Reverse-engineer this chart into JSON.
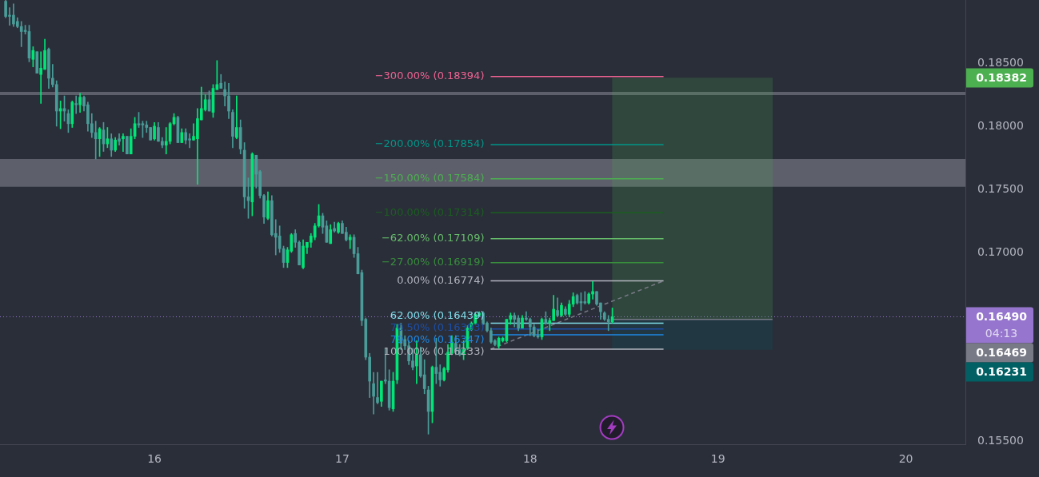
{
  "chart_data": {
    "type": "candlestick",
    "xlim": [
      15.178,
      20.317
    ],
    "ylim": [
      0.1548,
      0.19
    ],
    "xticks": [
      16,
      17,
      18,
      19,
      20
    ],
    "yticks": [
      {
        "value": 0.155,
        "label": "0.15500"
      },
      {
        "value": 0.17,
        "label": "0.17000"
      },
      {
        "value": 0.175,
        "label": "0.17500"
      },
      {
        "value": 0.18,
        "label": "0.18000"
      },
      {
        "value": 0.185,
        "label": "0.18500"
      }
    ],
    "grid": false,
    "legend": false,
    "bands": [
      {
        "axis": "y",
        "from": 0.1752,
        "to": 0.1774,
        "color": "#5d606b"
      }
    ],
    "ref_lines": [
      {
        "axis": "y",
        "value": 0.1826,
        "color": "#5d606b"
      },
      {
        "axis": "y",
        "value": 0.1649,
        "label": "0.16490",
        "color": "#9575cd",
        "line_style": "dotted"
      }
    ],
    "annotations": [
      "0.18382",
      "0.16469",
      "0.16231",
      "04:13"
    ],
    "series": [
      {
        "type": "bar",
        "x": [
          18.8638
        ],
        "base": [
          0.16469
        ],
        "values": [
          0.01913
        ],
        "color": "#4caf50"
      },
      {
        "type": "bar",
        "x": [
          18.8638
        ],
        "base": [
          0.16231
        ],
        "values": [
          0.00238
        ],
        "color": "#006064"
      },
      {
        "type": "line",
        "x": [
          18.4375,
          19.29
        ],
        "values": [
          0.16469,
          0.16469
        ],
        "color": "#787b86"
      },
      {
        "type": "line",
        "name": "−300.00% (0.18394)",
        "x": [
          17.79,
          18.71
        ],
        "values": [
          0.18394,
          0.18394
        ],
        "color": "#f06292"
      },
      {
        "type": "line",
        "name": "−200.00% (0.17854)",
        "x": [
          17.79,
          18.71
        ],
        "values": [
          0.17854,
          0.17854
        ],
        "color": "#009688"
      },
      {
        "type": "line",
        "name": "−150.00% (0.17584)",
        "x": [
          17.79,
          18.71
        ],
        "values": [
          0.17584,
          0.17584
        ],
        "color": "#4caf50"
      },
      {
        "type": "line",
        "name": "−100.00% (0.17314)",
        "x": [
          17.79,
          18.71
        ],
        "values": [
          0.17314,
          0.17314
        ],
        "color": "#1b5e20"
      },
      {
        "type": "line",
        "name": "−62.00% (0.17109)",
        "x": [
          17.79,
          18.71
        ],
        "values": [
          0.17109,
          0.17109
        ],
        "color": "#66bb6a"
      },
      {
        "type": "line",
        "name": "−27.00% (0.16919)",
        "x": [
          17.79,
          18.71
        ],
        "values": [
          0.16919,
          0.16919
        ],
        "color": "#388e3c"
      },
      {
        "type": "line",
        "name": "0.00% (0.16774)",
        "x": [
          17.79,
          18.71
        ],
        "values": [
          0.16774,
          0.16774
        ],
        "color": "#b2b5be"
      },
      {
        "type": "line",
        "name": "62.00% (0.16439)",
        "x": [
          17.79,
          18.71
        ],
        "values": [
          0.16439,
          0.16439
        ],
        "color": "#80deea"
      },
      {
        "type": "line",
        "name": "70.50% (0.16393)",
        "x": [
          17.79,
          18.71
        ],
        "values": [
          0.16393,
          0.16393
        ],
        "color": "#1c4fa8"
      },
      {
        "type": "line",
        "name": "79.00% (0.16347)",
        "x": [
          17.79,
          18.71
        ],
        "values": [
          0.16347,
          0.16347
        ],
        "color": "#1e88e5"
      },
      {
        "type": "line",
        "name": "100.00% (0.16233)",
        "x": [
          17.79,
          18.71
        ],
        "values": [
          0.16233,
          0.16233
        ],
        "color": "#b2b5be"
      },
      {
        "type": "line",
        "x": [
          17.79,
          18.71
        ],
        "values": [
          0.16233,
          0.16774
        ],
        "color": "#787b86",
        "line_style": "dashed"
      },
      {
        "x": [
          15.2083,
          15.2292,
          15.25,
          15.2708,
          15.2917,
          15.3125,
          15.3333,
          15.3542,
          15.375,
          15.3958,
          15.4167,
          15.4375,
          15.4583,
          15.4792,
          15.5,
          15.5208,
          15.5417,
          15.5625,
          15.5833,
          15.6042,
          15.625,
          15.6458,
          15.6667,
          15.6875,
          15.7083,
          15.7292,
          15.75,
          15.7708,
          15.7917,
          15.8125,
          15.8333,
          15.8542,
          15.875,
          15.8958,
          15.9167,
          15.9375,
          15.9583,
          15.9792,
          16,
          16.0208,
          16.0417,
          16.0625,
          16.0833,
          16.1042,
          16.125,
          16.1458,
          16.1667,
          16.1875,
          16.2083,
          16.2292,
          16.25,
          16.2708,
          16.2917,
          16.3125,
          16.3333,
          16.3542,
          16.375,
          16.3958,
          16.4167,
          16.4375,
          16.4583,
          16.4792,
          16.5,
          16.5208,
          16.5417,
          16.5625,
          16.5833,
          16.6042,
          16.625,
          16.6458,
          16.6667,
          16.6875,
          16.7083,
          16.7292,
          16.75,
          16.7708,
          16.7917,
          16.8125,
          16.8333,
          16.8542,
          16.875,
          16.8958,
          16.9167,
          16.9375,
          16.9583,
          16.9792,
          17,
          17.0208,
          17.0417,
          17.0625,
          17.0833,
          17.1042,
          17.125,
          17.1458,
          17.1667,
          17.1875,
          17.2083,
          17.2292,
          17.25,
          17.2708,
          17.2917,
          17.3125,
          17.3333,
          17.3542,
          17.375,
          17.3958,
          17.4167,
          17.4375,
          17.4583,
          17.4792,
          17.5,
          17.5208,
          17.5417,
          17.5625,
          17.5833,
          17.6042,
          17.625,
          17.6458,
          17.6667,
          17.6875,
          17.7083,
          17.7292,
          17.75,
          17.7708,
          17.7917,
          17.8125,
          17.8333,
          17.8542,
          17.875,
          17.8958,
          17.9167,
          17.9375,
          17.9583,
          17.9792,
          18,
          18.0208,
          18.0417,
          18.0625,
          18.0833,
          18.1042,
          18.125,
          18.1458,
          18.1667,
          18.1875,
          18.2083,
          18.2292,
          18.25,
          18.2708,
          18.2917,
          18.3125,
          18.3333,
          18.3542,
          18.375,
          18.3958,
          18.4167,
          18.4375
        ],
        "ohlc": [
          [
            0.1899,
            0.19,
            0.1886,
            0.1887
          ],
          [
            0.1888,
            0.1894,
            0.188,
            0.1887
          ],
          [
            0.1888,
            0.1897,
            0.1879,
            0.1881
          ],
          [
            0.1883,
            0.1886,
            0.1878,
            0.1879
          ],
          [
            0.1879,
            0.1883,
            0.1863,
            0.1875
          ],
          [
            0.1876,
            0.188,
            0.1873,
            0.1875
          ],
          [
            0.1875,
            0.188,
            0.1851,
            0.1854
          ],
          [
            0.1853,
            0.1863,
            0.1847,
            0.186
          ],
          [
            0.1859,
            0.1859,
            0.1842,
            0.1842
          ],
          [
            0.1841,
            0.1859,
            0.1818,
            0.1846
          ],
          [
            0.1845,
            0.1869,
            0.1845,
            0.186
          ],
          [
            0.1861,
            0.1862,
            0.183,
            0.1838
          ],
          [
            0.1838,
            0.1849,
            0.1831,
            0.1833
          ],
          [
            0.1833,
            0.1836,
            0.18,
            0.1812
          ],
          [
            0.1812,
            0.182,
            0.1798,
            0.1814
          ],
          [
            0.1814,
            0.1824,
            0.1804,
            0.1812
          ],
          [
            0.181,
            0.1813,
            0.1795,
            0.1802
          ],
          [
            0.1802,
            0.182,
            0.1799,
            0.1819
          ],
          [
            0.1818,
            0.1824,
            0.181,
            0.1817
          ],
          [
            0.1817,
            0.1826,
            0.1811,
            0.1823
          ],
          [
            0.1823,
            0.1824,
            0.1812,
            0.1816
          ],
          [
            0.1817,
            0.1819,
            0.1796,
            0.1802
          ],
          [
            0.1802,
            0.181,
            0.1791,
            0.1795
          ],
          [
            0.1795,
            0.1804,
            0.1774,
            0.179
          ],
          [
            0.179,
            0.1799,
            0.1776,
            0.1798
          ],
          [
            0.1797,
            0.1803,
            0.178,
            0.1786
          ],
          [
            0.1786,
            0.1799,
            0.1783,
            0.179
          ],
          [
            0.179,
            0.1794,
            0.1776,
            0.1781
          ],
          [
            0.1781,
            0.1791,
            0.178,
            0.1789
          ],
          [
            0.179,
            0.1794,
            0.1785,
            0.1788
          ],
          [
            0.179,
            0.1794,
            0.178,
            0.1792
          ],
          [
            0.1792,
            0.1792,
            0.1778,
            0.1778
          ],
          [
            0.1778,
            0.1798,
            0.1778,
            0.1792
          ],
          [
            0.1792,
            0.1807,
            0.179,
            0.1802
          ],
          [
            0.1802,
            0.1811,
            0.1799,
            0.1801
          ],
          [
            0.1802,
            0.1804,
            0.1791,
            0.1801
          ],
          [
            0.1801,
            0.1804,
            0.1795,
            0.1799
          ],
          [
            0.1799,
            0.1799,
            0.1789,
            0.1789
          ],
          [
            0.179,
            0.1803,
            0.1789,
            0.18
          ],
          [
            0.1799,
            0.1803,
            0.1788,
            0.1788
          ],
          [
            0.1788,
            0.1791,
            0.1783,
            0.1785
          ],
          [
            0.1785,
            0.1799,
            0.1778,
            0.1788
          ],
          [
            0.1788,
            0.1803,
            0.1786,
            0.1802
          ],
          [
            0.1802,
            0.181,
            0.1801,
            0.1807
          ],
          [
            0.1807,
            0.1808,
            0.1787,
            0.1787
          ],
          [
            0.1787,
            0.1798,
            0.1787,
            0.1795
          ],
          [
            0.1795,
            0.1798,
            0.1786,
            0.1789
          ],
          [
            0.179,
            0.1794,
            0.1783,
            0.1789
          ],
          [
            0.1789,
            0.1802,
            0.1789,
            0.1792
          ],
          [
            0.179,
            0.1814,
            0.1754,
            0.1806
          ],
          [
            0.1805,
            0.1831,
            0.1805,
            0.1814
          ],
          [
            0.1813,
            0.1825,
            0.1812,
            0.1821
          ],
          [
            0.1821,
            0.1828,
            0.1812,
            0.1812
          ],
          [
            0.1811,
            0.1833,
            0.1807,
            0.183
          ],
          [
            0.1829,
            0.1852,
            0.1829,
            0.1833
          ],
          [
            0.1834,
            0.1841,
            0.183,
            0.183
          ],
          [
            0.1829,
            0.1835,
            0.1816,
            0.1824
          ],
          [
            0.1824,
            0.1834,
            0.1806,
            0.1812
          ],
          [
            0.1811,
            0.1813,
            0.1783,
            0.1792
          ],
          [
            0.1791,
            0.1824,
            0.179,
            0.1799
          ],
          [
            0.1799,
            0.1805,
            0.1778,
            0.1782
          ],
          [
            0.1781,
            0.1787,
            0.1735,
            0.1744
          ],
          [
            0.1744,
            0.1759,
            0.1727,
            0.1741
          ],
          [
            0.174,
            0.1779,
            0.1729,
            0.1778
          ],
          [
            0.1777,
            0.1777,
            0.1751,
            0.1762
          ],
          [
            0.1764,
            0.1765,
            0.1743,
            0.1745
          ],
          [
            0.1745,
            0.1746,
            0.1723,
            0.1728
          ],
          [
            0.1727,
            0.1748,
            0.1726,
            0.1741
          ],
          [
            0.1741,
            0.1745,
            0.1713,
            0.1714
          ],
          [
            0.1715,
            0.1726,
            0.1698,
            0.1712
          ],
          [
            0.1713,
            0.1721,
            0.17,
            0.1703
          ],
          [
            0.1703,
            0.1705,
            0.1688,
            0.1692
          ],
          [
            0.1692,
            0.1704,
            0.1688,
            0.1702
          ],
          [
            0.1701,
            0.1715,
            0.17,
            0.1714
          ],
          [
            0.1715,
            0.1718,
            0.1704,
            0.1708
          ],
          [
            0.1708,
            0.1709,
            0.169,
            0.169
          ],
          [
            0.1688,
            0.171,
            0.1687,
            0.1705
          ],
          [
            0.1704,
            0.1708,
            0.1699,
            0.1708
          ],
          [
            0.1708,
            0.1715,
            0.1704,
            0.1713
          ],
          [
            0.1712,
            0.1723,
            0.171,
            0.1721
          ],
          [
            0.1721,
            0.1738,
            0.172,
            0.1729
          ],
          [
            0.1729,
            0.1731,
            0.1715,
            0.172
          ],
          [
            0.1721,
            0.1725,
            0.1708,
            0.1708
          ],
          [
            0.1707,
            0.1722,
            0.1707,
            0.1718
          ],
          [
            0.1719,
            0.1724,
            0.1716,
            0.1717
          ],
          [
            0.1716,
            0.1724,
            0.1715,
            0.1723
          ],
          [
            0.1723,
            0.1725,
            0.1715,
            0.1715
          ],
          [
            0.1716,
            0.172,
            0.1709,
            0.171
          ],
          [
            0.171,
            0.1714,
            0.1703,
            0.1712
          ],
          [
            0.1712,
            0.1714,
            0.1696,
            0.1699
          ],
          [
            0.1699,
            0.1704,
            0.1683,
            0.1683
          ],
          [
            0.1684,
            0.1686,
            0.1642,
            0.1646
          ],
          [
            0.1647,
            0.1648,
            0.1615,
            0.1617
          ],
          [
            0.1617,
            0.162,
            0.1585,
            0.1598
          ],
          [
            0.1596,
            0.1605,
            0.1572,
            0.1586
          ],
          [
            0.1585,
            0.1605,
            0.158,
            0.1581
          ],
          [
            0.1582,
            0.1598,
            0.1578,
            0.1598
          ],
          [
            0.1599,
            0.1624,
            0.1596,
            0.1598
          ],
          [
            0.1598,
            0.1607,
            0.1575,
            0.1577
          ],
          [
            0.1576,
            0.1605,
            0.1574,
            0.1598
          ],
          [
            0.1599,
            0.1643,
            0.1596,
            0.164
          ],
          [
            0.164,
            0.1644,
            0.1623,
            0.1628
          ],
          [
            0.1631,
            0.1634,
            0.1623,
            0.1626
          ],
          [
            0.1626,
            0.163,
            0.1611,
            0.1614
          ],
          [
            0.1614,
            0.1624,
            0.1607,
            0.1609
          ],
          [
            0.161,
            0.163,
            0.1596,
            0.1619
          ],
          [
            0.1619,
            0.1625,
            0.1601,
            0.1602
          ],
          [
            0.1603,
            0.1615,
            0.1588,
            0.1592
          ],
          [
            0.1591,
            0.1594,
            0.1556,
            0.1574
          ],
          [
            0.1574,
            0.161,
            0.1565,
            0.1609
          ],
          [
            0.1609,
            0.1632,
            0.1596,
            0.1604
          ],
          [
            0.1605,
            0.1611,
            0.1594,
            0.1599
          ],
          [
            0.1599,
            0.1609,
            0.1598,
            0.1608
          ],
          [
            0.1607,
            0.1627,
            0.1605,
            0.1621
          ],
          [
            0.162,
            0.1634,
            0.1619,
            0.1629
          ],
          [
            0.1628,
            0.1634,
            0.1619,
            0.1622
          ],
          [
            0.1623,
            0.1627,
            0.1618,
            0.1619
          ],
          [
            0.1619,
            0.163,
            0.1615,
            0.1623
          ],
          [
            0.1624,
            0.1642,
            0.1623,
            0.164
          ],
          [
            0.1639,
            0.1645,
            0.1638,
            0.1644
          ],
          [
            0.1644,
            0.1652,
            0.1643,
            0.1651
          ],
          [
            0.165,
            0.1653,
            0.1649,
            0.1652
          ],
          [
            0.1652,
            0.1653,
            0.1643,
            0.1643
          ],
          [
            0.1644,
            0.1645,
            0.1637,
            0.1638
          ],
          [
            0.1638,
            0.164,
            0.1628,
            0.1629
          ],
          [
            0.163,
            0.1631,
            0.1626,
            0.1627
          ],
          [
            0.1626,
            0.1633,
            0.1624,
            0.1632
          ],
          [
            0.163,
            0.1633,
            0.1629,
            0.1632
          ],
          [
            0.163,
            0.1647,
            0.1629,
            0.1647
          ],
          [
            0.1647,
            0.1652,
            0.1643,
            0.165
          ],
          [
            0.165,
            0.1652,
            0.1641,
            0.1647
          ],
          [
            0.1648,
            0.165,
            0.1638,
            0.164
          ],
          [
            0.164,
            0.165,
            0.164,
            0.1648
          ],
          [
            0.1648,
            0.1653,
            0.1646,
            0.1647
          ],
          [
            0.1647,
            0.1648,
            0.1634,
            0.1641
          ],
          [
            0.1641,
            0.1643,
            0.1633,
            0.1634
          ],
          [
            0.1634,
            0.1639,
            0.1632,
            0.1633
          ],
          [
            0.1633,
            0.1648,
            0.1631,
            0.1647
          ],
          [
            0.1647,
            0.1653,
            0.1643,
            0.1644
          ],
          [
            0.1644,
            0.1648,
            0.1638,
            0.1646
          ],
          [
            0.1646,
            0.1666,
            0.1646,
            0.1655
          ],
          [
            0.1654,
            0.1664,
            0.1649,
            0.165
          ],
          [
            0.165,
            0.166,
            0.1649,
            0.1658
          ],
          [
            0.1655,
            0.1657,
            0.165,
            0.1651
          ],
          [
            0.1651,
            0.1662,
            0.1649,
            0.1659
          ],
          [
            0.1659,
            0.1668,
            0.1657,
            0.1665
          ],
          [
            0.1666,
            0.1667,
            0.1659,
            0.166
          ],
          [
            0.1661,
            0.1668,
            0.1654,
            0.166
          ],
          [
            0.1661,
            0.1669,
            0.1659,
            0.166
          ],
          [
            0.166,
            0.1668,
            0.1659,
            0.1667
          ],
          [
            0.1667,
            0.1677,
            0.1663,
            0.1669
          ],
          [
            0.1669,
            0.1669,
            0.1658,
            0.1659
          ],
          [
            0.166,
            0.166,
            0.1647,
            0.1653
          ],
          [
            0.1652,
            0.1653,
            0.1646,
            0.1647
          ],
          [
            0.1647,
            0.165,
            0.1638,
            0.1645
          ],
          [
            0.1645,
            0.1656,
            0.1644,
            0.1649
          ]
        ],
        "colors": [
          "#4a9c98",
          "#4a9c98",
          "#4a9c98",
          "#4a9c98",
          "#4a9c98",
          "#4a9c98",
          "#4a9c98",
          "#00e676",
          "#4a9c98",
          "#00e676",
          "#00e676",
          "#4a9c98",
          "#4a9c98",
          "#4a9c98",
          "#00e676",
          "#4a9c98",
          "#4a9c98",
          "#00e676",
          "#4a9c98",
          "#00e676",
          "#4a9c98",
          "#4a9c98",
          "#4a9c98",
          "#4a9c98",
          "#00e676",
          "#4a9c98",
          "#00e676",
          "#4a9c98",
          "#00e676",
          "#4a9c98",
          "#00e676",
          "#4a9c98",
          "#00e676",
          "#00e676",
          "#4a9c98",
          "#4a9c98",
          "#4a9c98",
          "#4a9c98",
          "#00e676",
          "#4a9c98",
          "#4a9c98",
          "#00e676",
          "#00e676",
          "#00e676",
          "#4a9c98",
          "#00e676",
          "#4a9c98",
          "#4a9c98",
          "#00e676",
          "#00e676",
          "#00e676",
          "#00e676",
          "#4a9c98",
          "#00e676",
          "#00e676",
          "#4a9c98",
          "#4a9c98",
          "#4a9c98",
          "#4a9c98",
          "#00e676",
          "#4a9c98",
          "#4a9c98",
          "#4a9c98",
          "#00e676",
          "#4a9c98",
          "#4a9c98",
          "#4a9c98",
          "#00e676",
          "#4a9c98",
          "#4a9c98",
          "#4a9c98",
          "#4a9c98",
          "#00e676",
          "#00e676",
          "#4a9c98",
          "#4a9c98",
          "#00e676",
          "#00e676",
          "#00e676",
          "#00e676",
          "#00e676",
          "#4a9c98",
          "#4a9c98",
          "#00e676",
          "#4a9c98",
          "#00e676",
          "#4a9c98",
          "#4a9c98",
          "#00e676",
          "#4a9c98",
          "#4a9c98",
          "#4a9c98",
          "#4a9c98",
          "#4a9c98",
          "#4a9c98",
          "#4a9c98",
          "#00e676",
          "#4a9c98",
          "#4a9c98",
          "#00e676",
          "#00e676",
          "#4a9c98",
          "#4a9c98",
          "#4a9c98",
          "#4a9c98",
          "#00e676",
          "#4a9c98",
          "#4a9c98",
          "#4a9c98",
          "#00e676",
          "#4a9c98",
          "#4a9c98",
          "#00e676",
          "#00e676",
          "#00e676",
          "#4a9c98",
          "#4a9c98",
          "#00e676",
          "#00e676",
          "#00e676",
          "#00e676",
          "#00e676",
          "#4a9c98",
          "#4a9c98",
          "#4a9c98",
          "#4a9c98",
          "#00e676",
          "#00e676",
          "#00e676",
          "#00e676",
          "#4a9c98",
          "#4a9c98",
          "#00e676",
          "#4a9c98",
          "#4a9c98",
          "#4a9c98",
          "#4a9c98",
          "#00e676",
          "#4a9c98",
          "#00e676",
          "#00e676",
          "#4a9c98",
          "#00e676",
          "#4a9c98",
          "#00e676",
          "#00e676",
          "#4a9c98",
          "#4a9c98",
          "#4a9c98",
          "#00e676",
          "#00e676",
          "#4a9c98",
          "#4a9c98",
          "#4a9c98",
          "#4a9c98",
          "#00e676"
        ]
      }
    ]
  }
}
